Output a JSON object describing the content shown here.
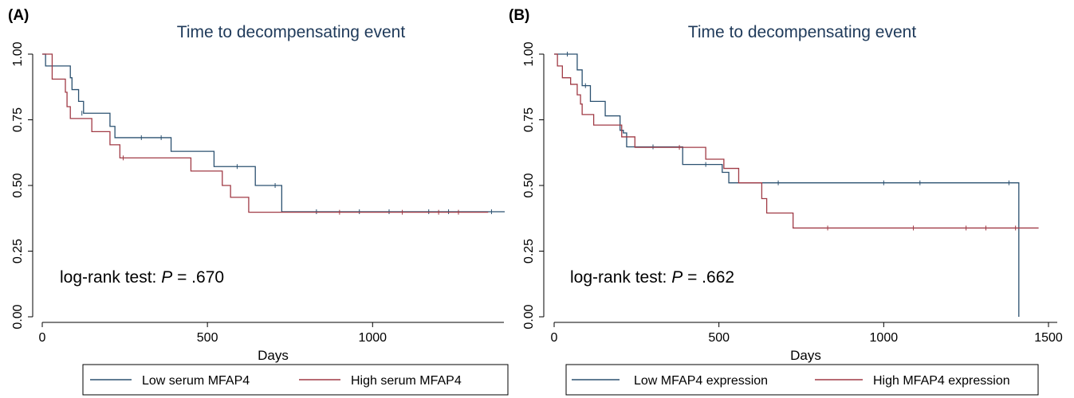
{
  "chart_data": [
    {
      "type": "line",
      "panel_label": "(A)",
      "title": "Time to decompensating event",
      "xlabel": "Days",
      "ylabel": "",
      "xlim": [
        0,
        1400
      ],
      "ylim": [
        0,
        1
      ],
      "xticks": [
        0,
        500,
        1000
      ],
      "yticks": [
        0,
        0.25,
        0.5,
        0.75,
        1.0
      ],
      "ytick_labels": [
        "0.00",
        "0.25",
        "0.50",
        "0.75",
        "1.00"
      ],
      "annotation": {
        "prefix": "log-rank test: ",
        "p": "P",
        "suffix": " = .670"
      },
      "legend": {
        "position": "bottom"
      },
      "series": [
        {
          "name": "Low serum MFAP4",
          "color": "#2b5170",
          "steps": [
            [
              0,
              1.0
            ],
            [
              10,
              0.955
            ],
            [
              85,
              0.91
            ],
            [
              90,
              0.865
            ],
            [
              110,
              0.82
            ],
            [
              125,
              0.775
            ],
            [
              205,
              0.725
            ],
            [
              220,
              0.682
            ],
            [
              390,
              0.63
            ],
            [
              520,
              0.572
            ],
            [
              645,
              0.5
            ],
            [
              725,
              0.4
            ],
            [
              1400,
              0.4
            ]
          ],
          "censors": [
            [
              120,
              0.775
            ],
            [
              300,
              0.682
            ],
            [
              360,
              0.682
            ],
            [
              590,
              0.572
            ],
            [
              705,
              0.5
            ],
            [
              830,
              0.4
            ],
            [
              960,
              0.4
            ],
            [
              1050,
              0.4
            ],
            [
              1170,
              0.4
            ],
            [
              1230,
              0.4
            ],
            [
              1360,
              0.4
            ]
          ]
        },
        {
          "name": "High serum MFAP4",
          "color": "#a03a45",
          "steps": [
            [
              0,
              1.0
            ],
            [
              30,
              0.905
            ],
            [
              70,
              0.855
            ],
            [
              75,
              0.8
            ],
            [
              85,
              0.755
            ],
            [
              150,
              0.705
            ],
            [
              205,
              0.655
            ],
            [
              235,
              0.605
            ],
            [
              450,
              0.555
            ],
            [
              545,
              0.5
            ],
            [
              570,
              0.455
            ],
            [
              625,
              0.398
            ],
            [
              1350,
              0.398
            ]
          ],
          "censors": [
            [
              245,
              0.605
            ],
            [
              900,
              0.398
            ],
            [
              1090,
              0.398
            ],
            [
              1200,
              0.398
            ],
            [
              1260,
              0.398
            ]
          ]
        }
      ]
    },
    {
      "type": "line",
      "panel_label": "(B)",
      "title": "Time to decompensating event",
      "xlabel": "Days",
      "ylabel": "",
      "xlim": [
        0,
        1500
      ],
      "ylim": [
        0,
        1
      ],
      "xticks": [
        0,
        500,
        1000,
        1500
      ],
      "yticks": [
        0,
        0.25,
        0.5,
        0.75,
        1.0
      ],
      "ytick_labels": [
        "0.00",
        "0.25",
        "0.50",
        "0.75",
        "1.00"
      ],
      "annotation": {
        "prefix": "log-rank test: ",
        "p": "P",
        "suffix": " = .662"
      },
      "legend": {
        "position": "bottom"
      },
      "series": [
        {
          "name": "Low MFAP4 expression",
          "color": "#2b5170",
          "steps": [
            [
              0,
              1.0
            ],
            [
              70,
              0.94
            ],
            [
              85,
              0.88
            ],
            [
              110,
              0.82
            ],
            [
              155,
              0.765
            ],
            [
              200,
              0.71
            ],
            [
              210,
              0.7
            ],
            [
              220,
              0.647
            ],
            [
              390,
              0.58
            ],
            [
              510,
              0.55
            ],
            [
              530,
              0.51
            ],
            [
              1410,
              0.51
            ],
            [
              1410,
              0.0
            ]
          ],
          "censors": [
            [
              40,
              1.0
            ],
            [
              95,
              0.88
            ],
            [
              300,
              0.647
            ],
            [
              460,
              0.58
            ],
            [
              680,
              0.51
            ],
            [
              1000,
              0.51
            ],
            [
              1110,
              0.51
            ],
            [
              1380,
              0.51
            ]
          ]
        },
        {
          "name": "High MFAP4 expression",
          "color": "#a03a45",
          "steps": [
            [
              0,
              1.0
            ],
            [
              10,
              0.955
            ],
            [
              25,
              0.91
            ],
            [
              50,
              0.885
            ],
            [
              70,
              0.845
            ],
            [
              80,
              0.81
            ],
            [
              85,
              0.77
            ],
            [
              120,
              0.73
            ],
            [
              205,
              0.685
            ],
            [
              245,
              0.645
            ],
            [
              460,
              0.6
            ],
            [
              515,
              0.565
            ],
            [
              560,
              0.51
            ],
            [
              630,
              0.45
            ],
            [
              645,
              0.395
            ],
            [
              725,
              0.338
            ],
            [
              1470,
              0.338
            ]
          ],
          "censors": [
            [
              380,
              0.645
            ],
            [
              830,
              0.338
            ],
            [
              1090,
              0.338
            ],
            [
              1250,
              0.338
            ],
            [
              1310,
              0.338
            ],
            [
              1400,
              0.338
            ]
          ]
        }
      ]
    }
  ]
}
